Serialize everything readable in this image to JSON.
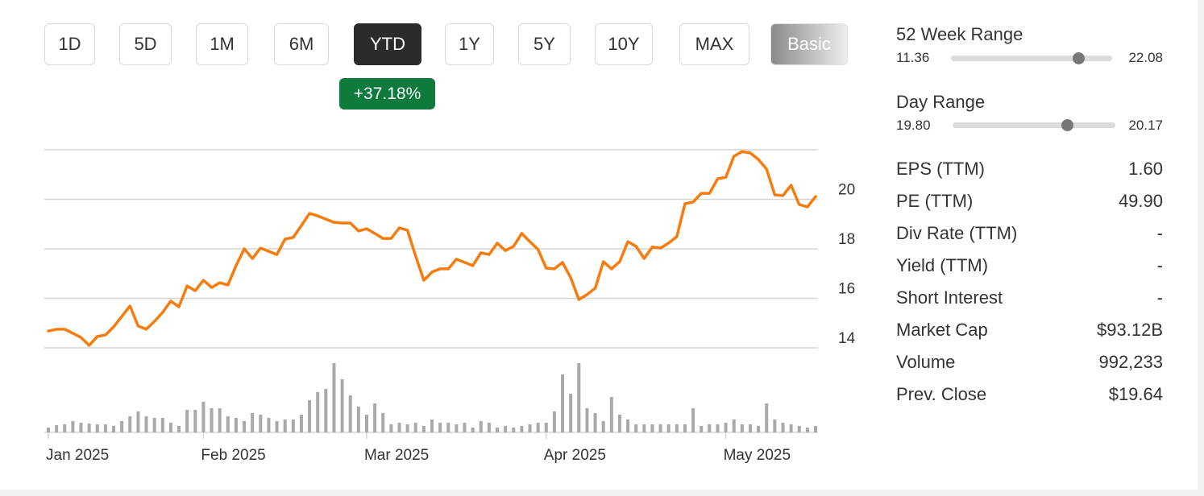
{
  "buttons": [
    "1D",
    "5D",
    "1M",
    "6M",
    "YTD",
    "1Y",
    "5Y",
    "10Y",
    "MAX",
    "Basic"
  ],
  "change_badge": "+37.18%",
  "ranges": [
    {
      "label": "52 Week Range",
      "low": 11.36,
      "high": 22.08,
      "marker": 19.83
    },
    {
      "label": "Day Range",
      "low": {
        "value": 19.8,
        "label": "19.80"
      },
      "high": 20.17,
      "marker": 20.06
    }
  ],
  "stats": [
    {
      "label": "EPS (TTM)",
      "value": "1.60"
    },
    {
      "label": "PE (TTM)",
      "value": "49.90"
    },
    {
      "label": "Div Rate (TTM)",
      "value": "-"
    },
    {
      "label": "Yield (TTM)",
      "value": "-"
    },
    {
      "label": "Short Interest",
      "value": "-"
    },
    {
      "label": "Market Cap",
      "value": "$93.12B"
    },
    {
      "label": "Volume",
      "value": "992,233"
    },
    {
      "label": "Prev. Close",
      "value": "$19.64"
    }
  ],
  "chart_data": {
    "type": "line",
    "categories": [
      "Jan 2025",
      null,
      null,
      null,
      null,
      null,
      null,
      null,
      null,
      null,
      null,
      null,
      null,
      null,
      null,
      null,
      null,
      null,
      null,
      "Feb 2025",
      null,
      null,
      null,
      null,
      null,
      null,
      null,
      null,
      null,
      null,
      null,
      null,
      null,
      null,
      null,
      null,
      null,
      null,
      null,
      "Mar 2025",
      null,
      null,
      null,
      null,
      null,
      null,
      null,
      null,
      null,
      null,
      null,
      null,
      null,
      null,
      null,
      null,
      null,
      null,
      null,
      null,
      null,
      "Apr 2025",
      null,
      null,
      null,
      null,
      null,
      null,
      null,
      null,
      null,
      null,
      null,
      null,
      null,
      null,
      null,
      null,
      null,
      null,
      null,
      null,
      null,
      "May 2025",
      null,
      null,
      null,
      null,
      null,
      null,
      null,
      null,
      null,
      null,
      null
    ],
    "series": [
      {
        "color": "#f57c0f",
        "values": [
          14.68,
          14.75,
          14.75,
          14.59,
          14.42,
          14.1,
          14.46,
          14.52,
          14.85,
          15.27,
          15.69,
          14.88,
          14.75,
          15.07,
          15.43,
          15.89,
          15.66,
          16.5,
          16.31,
          16.73,
          16.44,
          16.63,
          16.54,
          17.32,
          18.0,
          17.61,
          18.03,
          17.9,
          17.77,
          18.39,
          18.46,
          18.94,
          19.43,
          19.33,
          19.2,
          19.07,
          19.04,
          19.04,
          18.72,
          18.81,
          18.62,
          18.42,
          18.42,
          18.85,
          18.75,
          17.71,
          16.73,
          17.06,
          17.19,
          17.19,
          17.58,
          17.45,
          17.32,
          17.84,
          17.77,
          18.23,
          17.93,
          18.1,
          18.62,
          18.29,
          17.97,
          17.22,
          17.19,
          17.45,
          16.83,
          15.95,
          16.15,
          16.41,
          17.48,
          17.19,
          17.48,
          18.29,
          18.1,
          17.61,
          18.07,
          18.03,
          18.23,
          18.49,
          19.82,
          19.89,
          20.24,
          20.24,
          20.83,
          20.89,
          21.74,
          21.93,
          21.87,
          21.61,
          21.22,
          20.18,
          20.15,
          20.57,
          19.79,
          19.69,
          20.11
        ]
      }
    ],
    "volume": {
      "color": "#a9a9a9",
      "values": [
        6,
        9,
        10,
        14,
        12,
        11,
        10,
        10,
        8,
        14,
        20,
        26,
        20,
        18,
        18,
        12,
        8,
        28,
        28,
        38,
        30,
        30,
        20,
        18,
        14,
        24,
        22,
        18,
        14,
        16,
        16,
        22,
        40,
        50,
        54,
        86,
        66,
        46,
        32,
        22,
        36,
        24,
        10,
        12,
        10,
        12,
        8,
        16,
        12,
        12,
        10,
        12,
        6,
        14,
        12,
        6,
        8,
        6,
        8,
        10,
        12,
        12,
        26,
        72,
        48,
        86,
        30,
        24,
        14,
        44,
        22,
        16,
        10,
        10,
        10,
        10,
        10,
        10,
        10,
        30,
        8,
        10,
        10,
        12,
        16,
        10,
        10,
        8,
        36,
        16,
        12,
        10,
        8,
        6,
        8
      ]
    },
    "ylim": [
      14,
      22
    ],
    "yticks": [
      14,
      16,
      18,
      20
    ],
    "grid": true
  }
}
